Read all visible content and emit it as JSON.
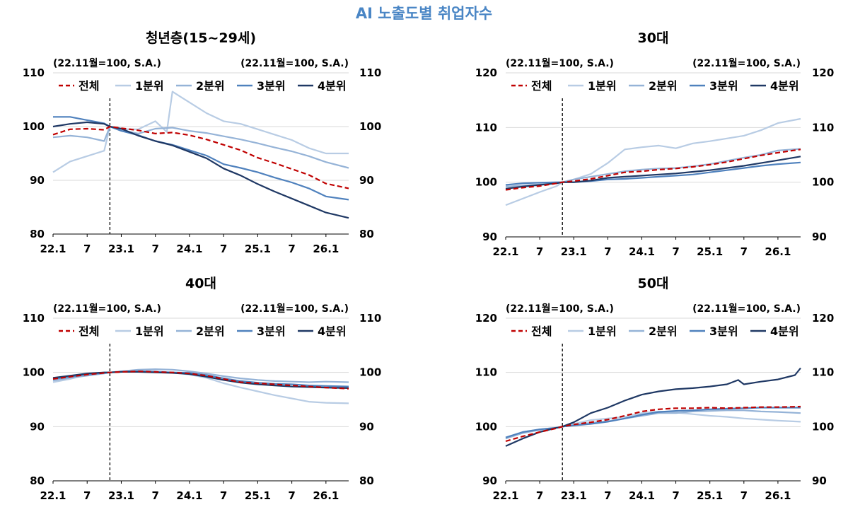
{
  "title": "AI 노출도별 취업자수",
  "legend_labels": [
    "전체",
    "1분위",
    "2분위",
    "3분위",
    "4분위"
  ],
  "series_colors": {
    "전체": "#c00000",
    "1분위": "#b8cce4",
    "2분위": "#95b3d7",
    "3분위": "#4f81bd",
    "4분위": "#1f3864"
  },
  "chart_data": [
    {
      "type": "line",
      "title": "청년층(15~29세)",
      "axis_note_left": "(22.11월=100, S.A.)",
      "axis_note_right": "(22.11월=100, S.A.)",
      "x_tick_labels": [
        "22.1",
        "7",
        "23.1",
        "7",
        "24.1",
        "7",
        "25.1",
        "7",
        "26.1"
      ],
      "ylim": [
        80,
        110
      ],
      "y_ticks": [
        80,
        90,
        100,
        110
      ],
      "reference_line": "22.11",
      "series": [
        {
          "name": "전체",
          "x": [
            "22.1",
            "22.4",
            "22.7",
            "22.10",
            "22.11",
            "23.1",
            "23.4",
            "23.7",
            "23.10",
            "24.1",
            "24.4",
            "24.7",
            "24.10",
            "25.1",
            "25.4",
            "25.7",
            "25.10",
            "26.1",
            "26.5"
          ],
          "values": [
            98.5,
            99.5,
            99.6,
            99.4,
            100,
            99.7,
            99.3,
            98.7,
            98.9,
            98.4,
            97.6,
            96.6,
            95.6,
            94.2,
            93.2,
            92.1,
            91.0,
            89.4,
            88.5
          ]
        },
        {
          "name": "1분위",
          "x": [
            "22.1",
            "22.4",
            "22.7",
            "22.10",
            "22.11",
            "23.1",
            "23.4",
            "23.7",
            "23.9",
            "23.10",
            "24.1",
            "24.4",
            "24.7",
            "24.10",
            "25.1",
            "25.4",
            "25.7",
            "25.10",
            "26.1",
            "26.5"
          ],
          "values": [
            91.5,
            93.5,
            94.5,
            95.5,
            100,
            99.5,
            99.5,
            101.0,
            99.0,
            106.5,
            104.5,
            102.5,
            101.0,
            100.5,
            99.5,
            98.5,
            97.5,
            96.0,
            95.0,
            95.0
          ]
        },
        {
          "name": "2분위",
          "x": [
            "22.1",
            "22.4",
            "22.7",
            "22.10",
            "22.11",
            "23.1",
            "23.4",
            "23.7",
            "23.10",
            "24.1",
            "24.4",
            "24.7",
            "24.10",
            "25.1",
            "25.4",
            "25.7",
            "25.10",
            "26.1",
            "26.5"
          ],
          "values": [
            98.0,
            98.3,
            98.0,
            97.3,
            100,
            99.3,
            98.7,
            99.6,
            99.8,
            99.2,
            98.8,
            98.2,
            97.6,
            96.9,
            96.1,
            95.4,
            94.5,
            93.4,
            92.3
          ]
        },
        {
          "name": "3분위",
          "x": [
            "22.1",
            "22.4",
            "22.7",
            "22.10",
            "22.11",
            "23.1",
            "23.4",
            "23.7",
            "23.10",
            "24.1",
            "24.4",
            "24.7",
            "24.10",
            "25.1",
            "25.4",
            "25.7",
            "25.10",
            "26.1",
            "26.5"
          ],
          "values": [
            101.8,
            101.8,
            101.2,
            100.6,
            100,
            99.2,
            98.4,
            97.3,
            96.6,
            95.6,
            94.6,
            93.0,
            92.3,
            91.5,
            90.5,
            89.6,
            88.5,
            87.0,
            86.4
          ]
        },
        {
          "name": "4분위",
          "x": [
            "22.1",
            "22.4",
            "22.7",
            "22.10",
            "22.11",
            "23.1",
            "23.4",
            "23.7",
            "23.10",
            "24.1",
            "24.4",
            "24.7",
            "24.10",
            "25.1",
            "25.4",
            "25.7",
            "25.10",
            "26.1",
            "26.5"
          ],
          "values": [
            100.0,
            100.5,
            100.8,
            100.5,
            100,
            99.6,
            98.3,
            97.3,
            96.5,
            95.3,
            94.1,
            92.2,
            90.9,
            89.3,
            87.9,
            86.6,
            85.3,
            84.0,
            83.0
          ]
        }
      ]
    },
    {
      "type": "line",
      "title": "30대",
      "axis_note_left": "(22.11월=100, S.A.)",
      "axis_note_right": "(22.11월=100, S.A.)",
      "x_tick_labels": [
        "22.1",
        "7",
        "23.1",
        "7",
        "24.1",
        "7",
        "25.1",
        "7",
        "26.1"
      ],
      "ylim": [
        90,
        120
      ],
      "y_ticks": [
        90,
        100,
        110,
        120
      ],
      "reference_line": "22.11",
      "series": [
        {
          "name": "전체",
          "x": [
            "22.1",
            "22.4",
            "22.7",
            "22.10",
            "22.11",
            "23.1",
            "23.4",
            "23.7",
            "23.10",
            "24.1",
            "24.4",
            "24.7",
            "24.10",
            "25.1",
            "25.4",
            "25.7",
            "25.10",
            "26.1",
            "26.5"
          ],
          "values": [
            98.6,
            99.0,
            99.3,
            99.8,
            100,
            100.2,
            100.6,
            101.2,
            101.8,
            102.0,
            102.3,
            102.5,
            102.8,
            103.2,
            103.7,
            104.3,
            104.9,
            105.4,
            106.0
          ]
        },
        {
          "name": "1분위",
          "x": [
            "22.1",
            "22.4",
            "22.7",
            "22.10",
            "22.11",
            "23.1",
            "23.4",
            "23.7",
            "23.10",
            "24.1",
            "24.4",
            "24.7",
            "24.10",
            "25.1",
            "25.4",
            "25.7",
            "25.10",
            "26.1",
            "26.5"
          ],
          "values": [
            95.8,
            97.0,
            98.2,
            99.3,
            100,
            100.5,
            101.5,
            103.5,
            106.0,
            106.4,
            106.7,
            106.2,
            107.1,
            107.5,
            108.0,
            108.5,
            109.5,
            110.8,
            111.6
          ]
        },
        {
          "name": "2분위",
          "x": [
            "22.1",
            "22.4",
            "22.7",
            "22.10",
            "22.11",
            "23.1",
            "23.4",
            "23.7",
            "23.10",
            "24.1",
            "24.4",
            "24.7",
            "24.10",
            "25.1",
            "25.4",
            "25.7",
            "25.10",
            "26.1",
            "26.5"
          ],
          "values": [
            99.2,
            99.4,
            99.6,
            99.8,
            100,
            100.5,
            101.0,
            101.5,
            102.0,
            102.3,
            102.5,
            102.6,
            102.9,
            103.3,
            103.9,
            104.5,
            105.0,
            105.8,
            106.1
          ]
        },
        {
          "name": "3분위",
          "x": [
            "22.1",
            "22.4",
            "22.7",
            "22.10",
            "22.11",
            "23.1",
            "23.4",
            "23.7",
            "23.10",
            "24.1",
            "24.4",
            "24.7",
            "24.10",
            "25.1",
            "25.4",
            "25.7",
            "25.10",
            "26.1",
            "26.5"
          ],
          "values": [
            99.5,
            99.8,
            99.9,
            100.0,
            100,
            100.0,
            100.2,
            100.5,
            100.6,
            100.8,
            101.0,
            101.2,
            101.4,
            101.8,
            102.2,
            102.6,
            103.0,
            103.3,
            103.6
          ]
        },
        {
          "name": "4분위",
          "x": [
            "22.1",
            "22.4",
            "22.7",
            "22.10",
            "22.11",
            "23.1",
            "23.4",
            "23.7",
            "23.10",
            "24.1",
            "24.4",
            "24.7",
            "24.10",
            "25.1",
            "25.4",
            "25.7",
            "25.10",
            "26.1",
            "26.5"
          ],
          "values": [
            98.8,
            99.2,
            99.5,
            99.8,
            100,
            100.0,
            100.3,
            100.8,
            101.0,
            101.2,
            101.4,
            101.6,
            101.9,
            102.2,
            102.6,
            103.0,
            103.5,
            104.0,
            104.7
          ]
        }
      ]
    },
    {
      "type": "line",
      "title": "40대",
      "axis_note_left": "(22.11월=100, S.A.)",
      "axis_note_right": "(22.11월=100, S.A.)",
      "x_tick_labels": [
        "22.1",
        "7",
        "23.1",
        "7",
        "24.1",
        "7",
        "25.1",
        "7",
        "26.1"
      ],
      "ylim": [
        80,
        110
      ],
      "y_ticks": [
        80,
        90,
        100,
        110
      ],
      "reference_line": "22.11",
      "series": [
        {
          "name": "전체",
          "x": [
            "22.1",
            "22.4",
            "22.7",
            "22.10",
            "22.11",
            "23.1",
            "23.4",
            "23.7",
            "23.10",
            "24.1",
            "24.4",
            "24.7",
            "24.10",
            "25.1",
            "25.4",
            "25.7",
            "25.10",
            "26.1",
            "26.5"
          ],
          "values": [
            98.8,
            99.2,
            99.6,
            99.9,
            100,
            100.1,
            100.2,
            100.1,
            100.0,
            99.8,
            99.4,
            98.8,
            98.2,
            98.0,
            97.8,
            97.6,
            97.4,
            97.2,
            97.0
          ]
        },
        {
          "name": "1분위",
          "x": [
            "22.1",
            "22.4",
            "22.7",
            "22.10",
            "22.11",
            "23.1",
            "23.4",
            "23.7",
            "23.10",
            "24.1",
            "24.4",
            "24.7",
            "24.10",
            "25.1",
            "25.4",
            "25.7",
            "25.10",
            "26.1",
            "26.5"
          ],
          "values": [
            98.2,
            98.8,
            99.6,
            100.0,
            100,
            100.2,
            100.4,
            100.2,
            100.0,
            99.6,
            99.0,
            98.0,
            97.2,
            96.5,
            95.8,
            95.2,
            94.6,
            94.4,
            94.3
          ]
        },
        {
          "name": "2분위",
          "x": [
            "22.1",
            "22.4",
            "22.7",
            "22.10",
            "22.11",
            "23.1",
            "23.4",
            "23.7",
            "23.10",
            "24.1",
            "24.4",
            "24.7",
            "24.10",
            "25.1",
            "25.4",
            "25.7",
            "25.10",
            "26.1",
            "26.5"
          ],
          "values": [
            98.5,
            99.0,
            99.4,
            99.8,
            100,
            100.2,
            100.5,
            100.6,
            100.5,
            100.2,
            99.8,
            99.3,
            98.9,
            98.6,
            98.4,
            98.3,
            98.2,
            98.3,
            98.2
          ]
        },
        {
          "name": "3분위",
          "x": [
            "22.1",
            "22.4",
            "22.7",
            "22.10",
            "22.11",
            "23.1",
            "23.4",
            "23.7",
            "23.10",
            "24.1",
            "24.4",
            "24.7",
            "24.10",
            "25.1",
            "25.4",
            "25.7",
            "25.10",
            "26.1",
            "26.5"
          ],
          "values": [
            98.8,
            99.2,
            99.6,
            99.9,
            100,
            100.1,
            100.2,
            100.1,
            100.0,
            99.9,
            99.5,
            98.9,
            98.4,
            98.1,
            97.9,
            97.8,
            97.6,
            97.5,
            97.4
          ]
        },
        {
          "name": "4분위",
          "x": [
            "22.1",
            "22.4",
            "22.7",
            "22.10",
            "22.11",
            "23.1",
            "23.4",
            "23.7",
            "23.10",
            "24.1",
            "24.4",
            "24.7",
            "24.10",
            "25.1",
            "25.4",
            "25.7",
            "25.10",
            "26.1",
            "26.5"
          ],
          "values": [
            99.0,
            99.4,
            99.8,
            100.0,
            100,
            100.1,
            100.1,
            100.0,
            99.9,
            99.7,
            99.2,
            98.6,
            98.1,
            97.8,
            97.6,
            97.4,
            97.3,
            97.2,
            97.1
          ]
        }
      ]
    },
    {
      "type": "line",
      "title": "50대",
      "axis_note_left": "(22.11월=100, S.A.)",
      "axis_note_right": "(22.11월=100, S.A.)",
      "x_tick_labels": [
        "22.1",
        "7",
        "23.1",
        "7",
        "24.1",
        "7",
        "25.1",
        "7",
        "26.1"
      ],
      "ylim": [
        90,
        120
      ],
      "y_ticks": [
        90,
        100,
        110,
        120
      ],
      "reference_line": "22.11",
      "series": [
        {
          "name": "전체",
          "x": [
            "22.1",
            "22.4",
            "22.7",
            "22.10",
            "22.11",
            "23.1",
            "23.4",
            "23.7",
            "23.10",
            "24.1",
            "24.4",
            "24.7",
            "24.10",
            "25.1",
            "25.4",
            "25.7",
            "25.10",
            "26.1",
            "26.5"
          ],
          "values": [
            97.3,
            98.2,
            99.0,
            99.7,
            100,
            100.4,
            100.8,
            101.3,
            102.0,
            102.8,
            103.2,
            103.4,
            103.4,
            103.5,
            103.4,
            103.5,
            103.6,
            103.6,
            103.7
          ]
        },
        {
          "name": "1분위",
          "x": [
            "22.1",
            "22.4",
            "22.7",
            "22.10",
            "22.11",
            "23.1",
            "23.4",
            "23.7",
            "23.10",
            "24.1",
            "24.4",
            "24.7",
            "24.10",
            "25.1",
            "25.4",
            "25.7",
            "25.10",
            "26.1",
            "26.5"
          ],
          "values": [
            97.8,
            99.0,
            99.5,
            99.8,
            100,
            100.5,
            101.2,
            101.5,
            101.8,
            102.5,
            102.8,
            102.6,
            102.3,
            102.0,
            101.8,
            101.5,
            101.3,
            101.1,
            100.9
          ]
        },
        {
          "name": "2분위",
          "x": [
            "22.1",
            "22.4",
            "22.7",
            "22.10",
            "22.11",
            "23.1",
            "23.4",
            "23.7",
            "23.10",
            "24.1",
            "24.4",
            "24.7",
            "24.10",
            "25.1",
            "25.4",
            "25.7",
            "25.10",
            "26.1",
            "26.5"
          ],
          "values": [
            97.8,
            98.8,
            99.4,
            99.8,
            100,
            100.3,
            100.7,
            101.0,
            101.5,
            102.0,
            102.5,
            102.5,
            102.8,
            102.9,
            103.0,
            103.0,
            102.8,
            102.7,
            102.5
          ]
        },
        {
          "name": "3분위",
          "x": [
            "22.1",
            "22.4",
            "22.7",
            "22.10",
            "22.11",
            "23.1",
            "23.4",
            "23.7",
            "23.10",
            "24.1",
            "24.4",
            "24.7",
            "24.10",
            "25.1",
            "25.4",
            "25.7",
            "25.10",
            "26.1",
            "26.5"
          ],
          "values": [
            98.0,
            99.0,
            99.5,
            99.8,
            100,
            100.2,
            100.5,
            100.9,
            101.5,
            102.2,
            102.7,
            102.9,
            103.0,
            103.2,
            103.3,
            103.4,
            103.5,
            103.5,
            103.5
          ]
        },
        {
          "name": "4분위",
          "x": [
            "22.1",
            "22.4",
            "22.7",
            "22.10",
            "22.11",
            "23.1",
            "23.4",
            "23.7",
            "23.10",
            "24.1",
            "24.4",
            "24.7",
            "24.10",
            "25.1",
            "25.4",
            "25.6",
            "25.7",
            "25.10",
            "26.1",
            "26.4",
            "26.5"
          ],
          "values": [
            96.4,
            97.8,
            99.0,
            99.8,
            100,
            100.8,
            102.5,
            103.5,
            104.8,
            105.9,
            106.5,
            106.9,
            107.1,
            107.4,
            107.8,
            108.6,
            107.8,
            108.3,
            108.7,
            109.5,
            110.8
          ]
        }
      ]
    }
  ]
}
